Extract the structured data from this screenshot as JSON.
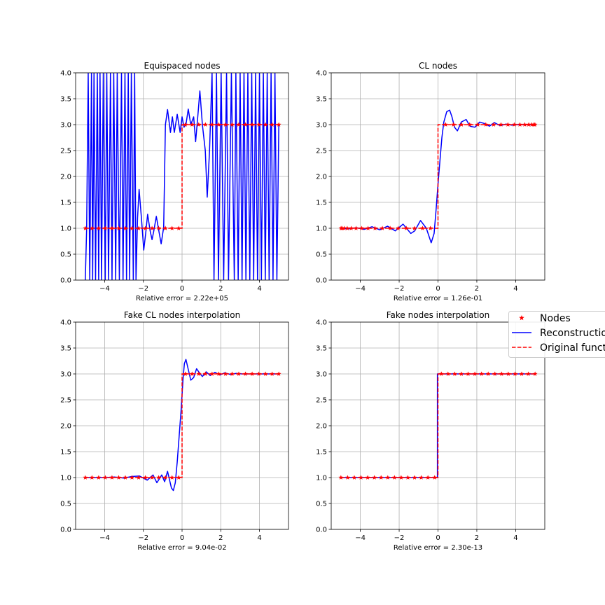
{
  "figure": {
    "legend": {
      "placement": "right, between rows, clipped",
      "entries": [
        {
          "label": "Nodes",
          "color": "#ff0000",
          "marker": "star"
        },
        {
          "label": "Reconstructio",
          "color": "#0000ff",
          "style": "solid"
        },
        {
          "label": "Original funct",
          "color": "#ff0000",
          "style": "dashed"
        }
      ]
    }
  },
  "chart_data": [
    {
      "type": "line",
      "title": "Equispaced nodes",
      "xlabel": "Relative error = 2.22e+05",
      "xlim": [
        -5.5,
        5.5
      ],
      "ylim": [
        0,
        4
      ],
      "xticks": [
        -4,
        -2,
        0,
        2,
        4
      ],
      "xtick_labels": [
        "−4",
        "−2",
        "0",
        "2",
        "4"
      ],
      "yticks": [
        0,
        0.5,
        1,
        1.5,
        2,
        2.5,
        3,
        3.5,
        4
      ],
      "ytick_labels": [
        "0.0",
        "0.5",
        "1.0",
        "1.5",
        "2.0",
        "2.5",
        "3.0",
        "3.5",
        "4.0"
      ],
      "grid": true,
      "series": [
        {
          "name": "Nodes",
          "x": [
            -5,
            -4.655,
            -4.31,
            -3.966,
            -3.621,
            -3.276,
            -2.931,
            -2.586,
            -2.241,
            -1.897,
            -1.552,
            -1.207,
            -0.862,
            -0.517,
            -0.172,
            0.172,
            0.517,
            0.862,
            1.207,
            1.552,
            1.897,
            2.241,
            2.586,
            2.931,
            3.276,
            3.621,
            3.966,
            4.31,
            4.655,
            5
          ],
          "y": [
            1,
            1,
            1,
            1,
            1,
            1,
            1,
            1,
            1,
            1,
            1,
            1,
            1,
            1,
            1,
            3,
            3,
            3,
            3,
            3,
            3,
            3,
            3,
            3,
            3,
            3,
            3,
            3,
            3,
            3
          ]
        },
        {
          "name": "Reconstruction",
          "x": [
            -5,
            -4.93,
            -4.85,
            -4.77,
            -4.68,
            -4.62,
            -4.55,
            -4.47,
            -4.38,
            -4.31,
            -4.24,
            -4.16,
            -4.07,
            -3.97,
            -3.89,
            -3.8,
            -3.7,
            -3.62,
            -3.53,
            -3.43,
            -3.35,
            -3.24,
            -3.13,
            -3.05,
            -2.95,
            -2.87,
            -2.78,
            -2.71,
            -2.62,
            -2.52,
            -2.45,
            -2.38,
            -2.3,
            -2.22,
            -2.1,
            -1.98,
            -1.88,
            -1.78,
            -1.65,
            -1.55,
            -1.46,
            -1.33,
            -1.2,
            -1.08,
            -0.95,
            -0.86,
            -0.75,
            -0.6,
            -0.5,
            -0.4,
            -0.25,
            -0.1,
            0,
            0.1,
            0.2,
            0.32,
            0.45,
            0.6,
            0.7,
            0.8,
            0.92,
            1.05,
            1.2,
            1.3,
            1.42,
            1.55,
            1.65,
            1.78,
            1.88,
            2.02,
            2.15,
            2.3,
            2.4,
            2.55,
            2.7,
            2.78,
            2.9,
            3.0,
            3.1,
            3.2,
            3.3,
            3.4,
            3.5,
            3.6,
            3.7,
            3.8,
            3.9,
            4.0,
            4.1,
            4.2,
            4.3,
            4.4,
            4.5,
            4.6,
            4.7,
            4.8,
            4.9,
            5.0
          ],
          "y": [
            0,
            1,
            4,
            0,
            4,
            0,
            4,
            0,
            4,
            0,
            4,
            0,
            4,
            0,
            4,
            0,
            4,
            0,
            4,
            0,
            4,
            0,
            4,
            0,
            4,
            0,
            4,
            0,
            4,
            0,
            4,
            0,
            1.2,
            1.75,
            1.2,
            0.58,
            0.9,
            1.27,
            0.95,
            0.78,
            0.95,
            1.23,
            0.95,
            0.7,
            1.02,
            3.0,
            3.29,
            2.85,
            3.15,
            2.85,
            3.2,
            2.85,
            3.15,
            2.95,
            3.0,
            3.3,
            3.0,
            3.15,
            2.67,
            3.1,
            3.65,
            3.0,
            2.5,
            1.6,
            2.5,
            4,
            0,
            4,
            0,
            4,
            0,
            4,
            0,
            4,
            0,
            4,
            0,
            4,
            0,
            4,
            0,
            4,
            0,
            4,
            0,
            4,
            0,
            4,
            0,
            4,
            0,
            4,
            0,
            4,
            0,
            4,
            0,
            3.0
          ]
        },
        {
          "name": "Original function",
          "x": [
            -5,
            0,
            0,
            5
          ],
          "y": [
            1,
            1,
            3,
            3
          ]
        }
      ]
    },
    {
      "type": "line",
      "title": "CL nodes",
      "xlabel": "Relative error = 1.26e-01",
      "xlim": [
        -5.5,
        5.5
      ],
      "ylim": [
        0,
        4
      ],
      "xticks": [
        -4,
        -2,
        0,
        2,
        4
      ],
      "xtick_labels": [
        "−4",
        "−2",
        "0",
        "2",
        "4"
      ],
      "yticks": [
        0,
        0.5,
        1,
        1.5,
        2,
        2.5,
        3,
        3.5,
        4
      ],
      "ytick_labels": [
        "0.0",
        "0.5",
        "1.0",
        "1.5",
        "2.0",
        "2.5",
        "3.0",
        "3.5",
        "4.0"
      ],
      "grid": true,
      "series": [
        {
          "name": "Nodes",
          "x": [
            -4.993,
            -4.939,
            -4.832,
            -4.674,
            -4.469,
            -4.219,
            -3.928,
            -3.602,
            -3.245,
            -2.864,
            -2.464,
            -2.051,
            -1.632,
            -1.212,
            -0.796,
            -0.393,
            0.393,
            0.796,
            1.212,
            1.632,
            2.051,
            2.464,
            2.864,
            3.245,
            3.602,
            3.928,
            4.219,
            4.469,
            4.674,
            4.832,
            4.939,
            4.993
          ],
          "y": [
            1,
            1,
            1,
            1,
            1,
            1,
            1,
            1,
            1,
            1,
            1,
            1,
            1,
            1,
            1,
            1,
            3,
            3,
            3,
            3,
            3,
            3,
            3,
            3,
            3,
            3,
            3,
            3,
            3,
            3,
            3,
            3
          ]
        },
        {
          "name": "Reconstruction",
          "x": [
            -5,
            -4.6,
            -4.2,
            -3.8,
            -3.4,
            -3.0,
            -2.6,
            -2.2,
            -1.8,
            -1.4,
            -1.2,
            -0.9,
            -0.6,
            -0.35,
            -0.2,
            -0.1,
            0,
            0.1,
            0.2,
            0.3,
            0.45,
            0.6,
            0.72,
            0.85,
            1.0,
            1.2,
            1.45,
            1.65,
            1.9,
            2.15,
            2.4,
            2.65,
            2.9,
            3.2,
            3.5,
            3.8,
            4.1,
            4.4,
            4.7,
            5.0
          ],
          "y": [
            1,
            0.99,
            1.01,
            0.98,
            1.03,
            0.97,
            1.04,
            0.95,
            1.08,
            0.9,
            0.95,
            1.15,
            1.0,
            0.72,
            0.9,
            1.35,
            1.85,
            2.3,
            2.75,
            3.05,
            3.25,
            3.28,
            3.15,
            2.95,
            2.88,
            3.05,
            3.1,
            2.97,
            2.95,
            3.05,
            3.02,
            2.97,
            3.04,
            2.98,
            3.01,
            2.99,
            3.0,
            3.0,
            3.0,
            3.0
          ]
        },
        {
          "name": "Original function",
          "x": [
            -5,
            0,
            0,
            5
          ],
          "y": [
            1,
            1,
            3,
            3
          ]
        }
      ]
    },
    {
      "type": "line",
      "title": "Fake CL nodes interpolation",
      "xlabel": "Relative error = 9.04e-02",
      "xlim": [
        -5.5,
        5.5
      ],
      "ylim": [
        0,
        4
      ],
      "xticks": [
        -4,
        -2,
        0,
        2,
        4
      ],
      "xtick_labels": [
        "−4",
        "−2",
        "0",
        "2",
        "4"
      ],
      "yticks": [
        0,
        0.5,
        1,
        1.5,
        2,
        2.5,
        3,
        3.5,
        4
      ],
      "ytick_labels": [
        "0.0",
        "0.5",
        "1.0",
        "1.5",
        "2.0",
        "2.5",
        "3.0",
        "3.5",
        "4.0"
      ],
      "grid": true,
      "series": [
        {
          "name": "Nodes",
          "x": [
            -5,
            -4.655,
            -4.31,
            -3.966,
            -3.621,
            -3.276,
            -2.931,
            -2.586,
            -2.241,
            -1.897,
            -1.552,
            -1.207,
            -0.862,
            -0.517,
            -0.172,
            0.172,
            0.517,
            0.862,
            1.207,
            1.552,
            1.897,
            2.241,
            2.586,
            2.931,
            3.276,
            3.621,
            3.966,
            4.31,
            4.655,
            5
          ],
          "y": [
            1,
            1,
            1,
            1,
            1,
            1,
            1,
            1,
            1,
            1,
            1,
            1,
            1,
            1,
            1,
            3,
            3,
            3,
            3,
            3,
            3,
            3,
            3,
            3,
            3,
            3,
            3,
            3,
            3,
            3
          ]
        },
        {
          "name": "Reconstruction",
          "x": [
            -5,
            -4.5,
            -4.0,
            -3.5,
            -3.0,
            -2.6,
            -2.2,
            -1.8,
            -1.5,
            -1.3,
            -1.05,
            -0.9,
            -0.75,
            -0.55,
            -0.45,
            -0.35,
            -0.25,
            -0.15,
            -0.05,
            0.05,
            0.12,
            0.2,
            0.3,
            0.45,
            0.6,
            0.75,
            0.9,
            1.05,
            1.25,
            1.45,
            1.7,
            1.95,
            2.2,
            2.5,
            2.8,
            3.1,
            3.5,
            4.0,
            4.5,
            5.0
          ],
          "y": [
            1,
            1,
            1,
            1.01,
            0.99,
            1.02,
            1.03,
            0.95,
            1.05,
            0.9,
            1.05,
            0.92,
            1.12,
            0.8,
            0.75,
            0.9,
            1.3,
            1.8,
            2.3,
            2.9,
            3.2,
            3.28,
            3.12,
            2.88,
            2.93,
            3.1,
            3.02,
            2.95,
            3.04,
            2.97,
            3.03,
            2.98,
            3.02,
            2.99,
            3.01,
            3.0,
            3.0,
            3.0,
            3.0,
            3.0
          ]
        },
        {
          "name": "Original function",
          "x": [
            -5,
            0,
            0,
            5
          ],
          "y": [
            1,
            1,
            3,
            3
          ]
        }
      ]
    },
    {
      "type": "line",
      "title": "Fake nodes interpolation",
      "xlabel": "Relative error = 2.30e-13",
      "xlim": [
        -5.5,
        5.5
      ],
      "ylim": [
        0,
        4
      ],
      "xticks": [
        -4,
        -2,
        0,
        2,
        4
      ],
      "xtick_labels": [
        "−4",
        "−2",
        "0",
        "2",
        "4"
      ],
      "yticks": [
        0,
        0.5,
        1,
        1.5,
        2,
        2.5,
        3,
        3.5,
        4
      ],
      "ytick_labels": [
        "0.0",
        "0.5",
        "1.0",
        "1.5",
        "2.0",
        "2.5",
        "3.0",
        "3.5",
        "4.0"
      ],
      "grid": true,
      "series": [
        {
          "name": "Nodes",
          "x": [
            -5,
            -4.655,
            -4.31,
            -3.966,
            -3.621,
            -3.276,
            -2.931,
            -2.586,
            -2.241,
            -1.897,
            -1.552,
            -1.207,
            -0.862,
            -0.517,
            -0.172,
            0.172,
            0.517,
            0.862,
            1.207,
            1.552,
            1.897,
            2.241,
            2.586,
            2.931,
            3.276,
            3.621,
            3.966,
            4.31,
            4.655,
            5
          ],
          "y": [
            1,
            1,
            1,
            1,
            1,
            1,
            1,
            1,
            1,
            1,
            1,
            1,
            1,
            1,
            1,
            3,
            3,
            3,
            3,
            3,
            3,
            3,
            3,
            3,
            3,
            3,
            3,
            3,
            3,
            3
          ]
        },
        {
          "name": "Reconstruction",
          "x": [
            -5,
            -0.03,
            -0.03,
            5
          ],
          "y": [
            1,
            1,
            3,
            3
          ]
        },
        {
          "name": "Original function",
          "x": [
            -5,
            0,
            0,
            5
          ],
          "y": [
            1,
            1,
            3,
            3
          ]
        }
      ]
    }
  ]
}
